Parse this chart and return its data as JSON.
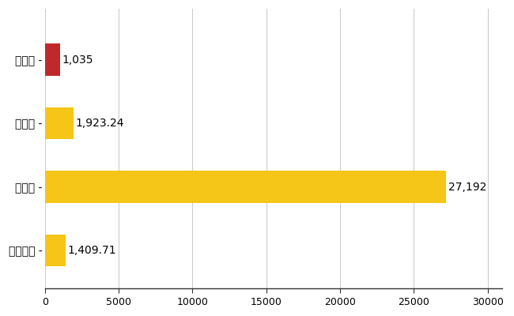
{
  "categories": [
    "古賀市",
    "県平均",
    "県最大",
    "全国平均"
  ],
  "values": [
    1035,
    1923.24,
    27192,
    1409.71
  ],
  "labels": [
    "1,035",
    "1,923.24",
    "27,192",
    "1,409.71"
  ],
  "bar_colors": [
    "#c0292b",
    "#f5c518",
    "#f5c518",
    "#f5c518"
  ],
  "background_color": "#ffffff",
  "grid_color": "#cccccc",
  "xlim": [
    0,
    31000
  ],
  "xticks": [
    0,
    5000,
    10000,
    15000,
    20000,
    25000,
    30000
  ],
  "bar_height": 0.5,
  "label_fontsize": 10,
  "tick_fontsize": 9,
  "ytick_fontsize": 10
}
